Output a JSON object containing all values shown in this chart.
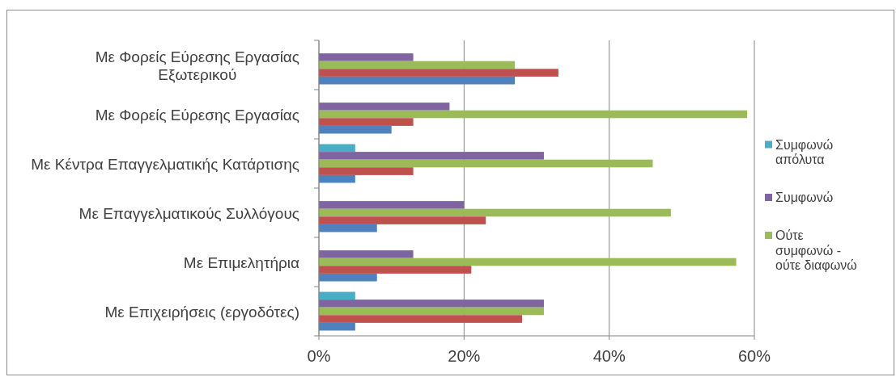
{
  "chart_data": {
    "type": "bar",
    "orientation": "horizontal",
    "categories": [
      "Με Φορείς Εύρεσης Εργασίας Εξωτερικού",
      "Με Φορείς Εύρεσης Εργασίας",
      "Με Κέντρα Επαγγελματικής Κατάρτισης",
      "Με Επαγγελματικούς Συλλόγους",
      "Με Επιμελητήρια",
      "Με Επιχειρήσεις (εργοδότες)"
    ],
    "series": [
      {
        "name": "Συμφωνώ απόλυτα",
        "color": "#4bacc6",
        "values": [
          0,
          0,
          5,
          0,
          0,
          5
        ]
      },
      {
        "name": "Συμφωνώ",
        "color": "#8064a2",
        "values": [
          13,
          18,
          31,
          20,
          13,
          31
        ]
      },
      {
        "name": "Ούτε συμφωνώ - ούτε διαφωνώ",
        "color": "#9bbb59",
        "values": [
          27,
          59,
          46,
          48.5,
          57.5,
          31
        ]
      },
      {
        "color": "#c0504d",
        "values": [
          33,
          13,
          13,
          23,
          21,
          28
        ]
      },
      {
        "color": "#4f81bd",
        "values": [
          27,
          10,
          5,
          8,
          8,
          5
        ]
      }
    ],
    "xlim": [
      0,
      60
    ],
    "xticks": [
      {
        "value": 0,
        "label": "0%"
      },
      {
        "value": 20,
        "label": "20%"
      },
      {
        "value": 40,
        "label": "40%"
      },
      {
        "value": 60,
        "label": "60%"
      }
    ],
    "grid": "x",
    "legend": "right"
  }
}
